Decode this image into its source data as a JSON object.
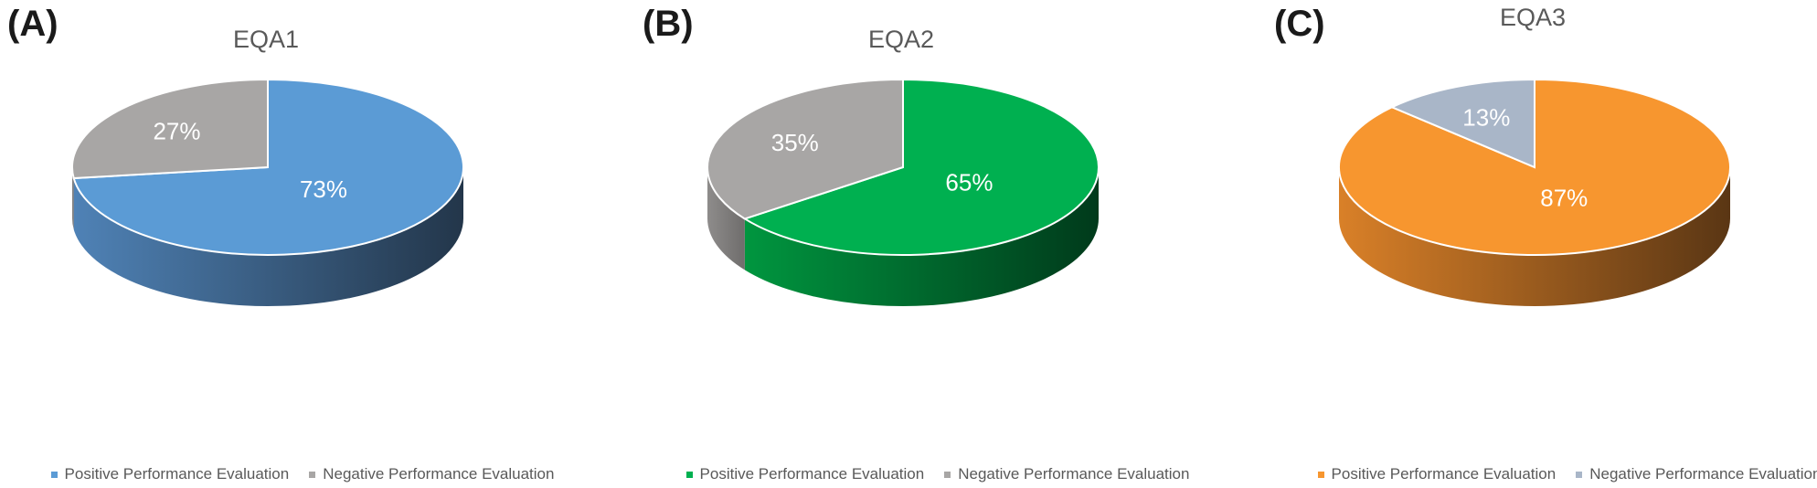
{
  "chart_data": [
    {
      "type": "pie",
      "panel": "(A)",
      "title": "EQA1",
      "slices": [
        {
          "name": "Positive Performance Evaluation",
          "value": 73,
          "label": "73%",
          "color": "#5b9bd5",
          "side_dark": "#23364a",
          "side_light": "#4f82b6"
        },
        {
          "name": "Negative Performance Evaluation",
          "value": 27,
          "label": "27%",
          "color": "#a8a6a5",
          "side_dark": "#6f6d6c",
          "side_light": "#8a8887"
        }
      ],
      "legend_position": "bottom"
    },
    {
      "type": "pie",
      "panel": "(B)",
      "title": "EQA2",
      "slices": [
        {
          "name": "Positive Performance Evaluation",
          "value": 65,
          "label": "65%",
          "color": "#00b050",
          "side_dark": "#003a1b",
          "side_light": "#00963f"
        },
        {
          "name": "Negative Performance Evaluation",
          "value": 35,
          "label": "35%",
          "color": "#a8a6a5",
          "side_dark": "#6f6d6c",
          "side_light": "#8e8c8b"
        }
      ],
      "legend_position": "bottom"
    },
    {
      "type": "pie",
      "panel": "(C)",
      "title": "EQA3",
      "slices": [
        {
          "name": "Positive Performance Evaluation",
          "value": 87,
          "label": "87%",
          "color": "#f7962f",
          "side_dark": "#5a3614",
          "side_light": "#d98028"
        },
        {
          "name": "Negative Performance Evaluation",
          "value": 13,
          "label": "13%",
          "color": "#a9b6c8",
          "side_dark": "#6c7585",
          "side_light": "#8e9aab"
        }
      ],
      "legend_position": "bottom"
    }
  ]
}
